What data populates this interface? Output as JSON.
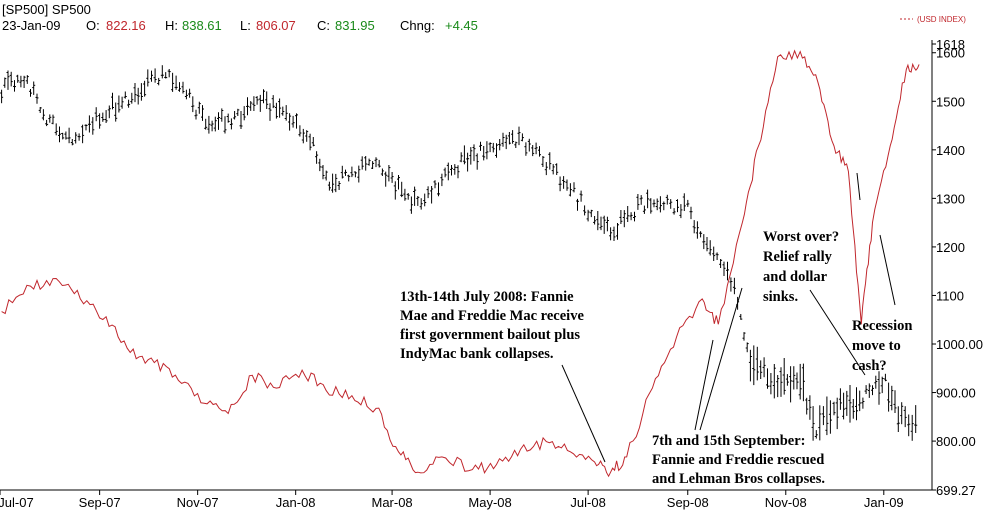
{
  "header": {
    "symbol": "[SP500] SP500",
    "date": "23-Jan-09",
    "open_label": "O:",
    "open_value": "822.16",
    "high_label": "H:",
    "high_value": "838.61",
    "low_label": "L:",
    "low_value": "806.07",
    "close_label": "C:",
    "close_value": "831.95",
    "change_label": "Chng:",
    "change_value": "+4.45",
    "legend_usd": "(USD INDEX)"
  },
  "colors": {
    "background": "#ffffff",
    "sp500": "#000000",
    "usd_index": "#c0272d",
    "value_red": "#c0272d",
    "value_green": "#1a8a1a",
    "grid": "#d9d9d9"
  },
  "annotations": [
    {
      "id": "bailout",
      "lines": [
        "13th-14th July 2008: Fannie",
        "Mae and Freddie Mac receive",
        "first government bailout plus",
        "IndyMac bank collapses."
      ]
    },
    {
      "id": "september",
      "lines": [
        "7th and 15th September:",
        "Fannie and Freddie rescued",
        "and Lehman Bros collapses."
      ]
    },
    {
      "id": "worst_over",
      "lines": [
        "Worst over?",
        "Relief rally",
        "and dollar",
        "sinks."
      ]
    },
    {
      "id": "recession",
      "lines": [
        "Recession",
        "move to",
        "cash?"
      ]
    }
  ],
  "chart_data": {
    "type": "line",
    "x_ticks": [
      "Jul-07",
      "Sep-07",
      "Nov-07",
      "Jan-08",
      "Mar-08",
      "May-08",
      "Jul-08",
      "Sep-08",
      "Nov-08",
      "Jan-09"
    ],
    "y_ticks": [
      "1618",
      "1600",
      "1500",
      "1400",
      "1300",
      "1200",
      "1100",
      "1000.00",
      "900.00",
      "800.00",
      "699.27"
    ],
    "ylim": [
      699.27,
      1618
    ],
    "grid": false,
    "series": [
      {
        "name": "SP500",
        "style": "ohlc-bars",
        "dates": [
          "2007-07-02",
          "2007-07-16",
          "2007-08-01",
          "2007-08-15",
          "2007-09-01",
          "2007-09-15",
          "2007-10-01",
          "2007-10-10",
          "2007-10-25",
          "2007-11-10",
          "2007-11-26",
          "2007-12-10",
          "2007-12-24",
          "2008-01-10",
          "2008-01-22",
          "2008-02-05",
          "2008-02-20",
          "2008-03-05",
          "2008-03-17",
          "2008-04-01",
          "2008-04-15",
          "2008-05-01",
          "2008-05-19",
          "2008-06-05",
          "2008-06-20",
          "2008-07-01",
          "2008-07-15",
          "2008-08-01",
          "2008-08-15",
          "2008-09-01",
          "2008-09-15",
          "2008-09-30",
          "2008-10-10",
          "2008-10-27",
          "2008-11-10",
          "2008-11-20",
          "2008-12-01",
          "2008-12-15",
          "2009-01-02",
          "2009-01-10",
          "2009-01-23"
        ],
        "values": [
          1520,
          1550,
          1455,
          1430,
          1470,
          1500,
          1540,
          1560,
          1510,
          1450,
          1470,
          1500,
          1480,
          1420,
          1330,
          1350,
          1370,
          1320,
          1290,
          1340,
          1380,
          1400,
          1420,
          1370,
          1320,
          1270,
          1230,
          1280,
          1295,
          1280,
          1190,
          1120,
          960,
          920,
          930,
          820,
          870,
          880,
          920,
          850,
          832
        ]
      },
      {
        "name": "USD INDEX",
        "style": "line",
        "dates": [
          "2007-07-02",
          "2007-07-20",
          "2007-08-05",
          "2007-08-20",
          "2007-09-05",
          "2007-09-20",
          "2007-10-05",
          "2007-10-20",
          "2007-11-05",
          "2007-11-20",
          "2007-12-05",
          "2007-12-20",
          "2008-01-05",
          "2008-01-20",
          "2008-02-05",
          "2008-02-20",
          "2008-03-05",
          "2008-03-17",
          "2008-04-01",
          "2008-04-20",
          "2008-05-05",
          "2008-05-20",
          "2008-06-05",
          "2008-06-20",
          "2008-07-05",
          "2008-07-15",
          "2008-07-25",
          "2008-08-10",
          "2008-08-25",
          "2008-09-10",
          "2008-09-20",
          "2008-10-05",
          "2008-10-15",
          "2008-10-27",
          "2008-11-10",
          "2008-11-21",
          "2008-12-01",
          "2008-12-10",
          "2008-12-18",
          "2008-12-25",
          "2009-01-05",
          "2009-01-15",
          "2009-01-23"
        ],
        "values": [
          72.5,
          73.5,
          73.8,
          73.0,
          72.3,
          70.9,
          70.5,
          69.8,
          68.9,
          68.5,
          70.0,
          69.5,
          70.2,
          69.4,
          69.2,
          68.7,
          67.0,
          66.2,
          66.8,
          66.3,
          66.5,
          67.1,
          67.4,
          67.0,
          66.6,
          66.2,
          66.8,
          69.5,
          71.5,
          73.0,
          72.0,
          76.0,
          79.0,
          82.5,
          82.7,
          81.5,
          79.0,
          78.0,
          72.0,
          76.0,
          79.0,
          82.0,
          82.2
        ]
      }
    ]
  }
}
